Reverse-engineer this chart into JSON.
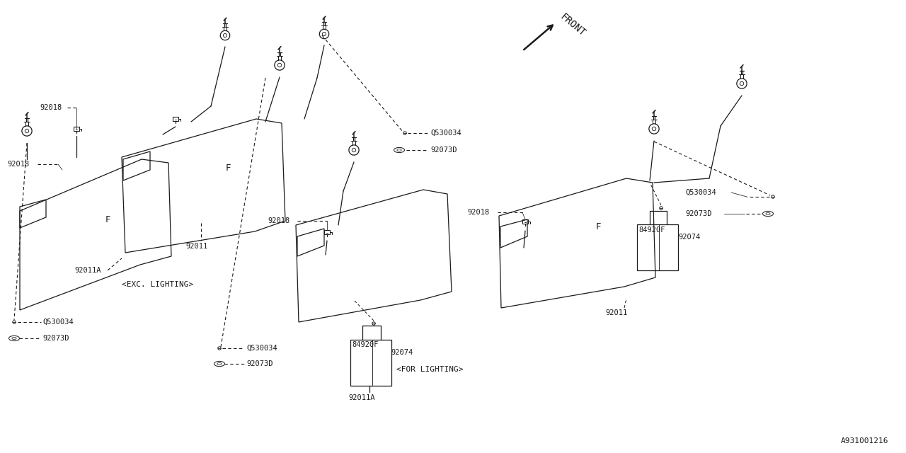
{
  "bg_color": "#ffffff",
  "line_color": "#1a1a1a",
  "fig_width": 12.8,
  "fig_height": 6.4,
  "diagram_id": "A931001216",
  "exc_lighting_label": "<EXC. LIGHTING>",
  "for_lighting_label": "<FOR LIGHTING>",
  "front_label": "FRONT",
  "font_size": 7.5,
  "lw": 0.9
}
